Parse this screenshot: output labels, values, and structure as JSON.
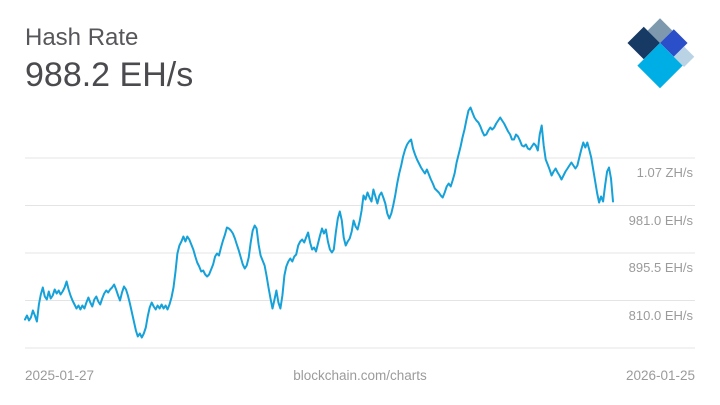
{
  "header": {
    "title": "Hash Rate",
    "current_value": "988.2 EH/s"
  },
  "logo": {
    "name": "blockchain-com-logo",
    "colors": {
      "gray": "#7e99ad",
      "navy": "#173a64",
      "royal": "#2b4fc8",
      "cyan": "#00aee6",
      "light": "#b9d3e5"
    }
  },
  "footer": {
    "start_date": "2025-01-27",
    "watermark": "blockchain.com/charts",
    "end_date": "2026-01-25"
  },
  "chart_data": {
    "type": "line",
    "title": "Hash Rate",
    "unit": "EH/s",
    "current_value_eh": 988.2,
    "x_range": [
      "2025-01-27",
      "2026-01-25"
    ],
    "legend": "none",
    "grid": "horizontal",
    "line_color": "#16a1d9",
    "grid_color": "#e4e4e4",
    "label_color": "#9b9b9b",
    "y_gridlines": [
      {
        "label": "1.07 ZH/s",
        "value_eh": 1066.5
      },
      {
        "label": "981.0 EH/s",
        "value_eh": 981.0
      },
      {
        "label": "895.5 EH/s",
        "value_eh": 895.5
      },
      {
        "label": "810.0 EH/s",
        "value_eh": 810.0
      },
      {
        "label": "",
        "value_eh": 724.5
      }
    ],
    "values_eh": [
      775.8,
      783.0,
      774.0,
      779.4,
      792.0,
      783.0,
      772.2,
      802.8,
      820.8,
      833.4,
      817.2,
      811.8,
      826.2,
      813.6,
      819.0,
      829.8,
      822.6,
      828.0,
      820.8,
      826.2,
      833.4,
      844.2,
      829.8,
      819.0,
      810.0,
      802.8,
      795.6,
      801.0,
      793.8,
      801.0,
      795.6,
      806.4,
      815.4,
      806.4,
      799.2,
      811.8,
      817.2,
      808.2,
      802.8,
      813.6,
      822.6,
      828.0,
      824.4,
      829.8,
      833.4,
      838.8,
      829.8,
      819.0,
      810.0,
      824.4,
      835.2,
      829.8,
      819.0,
      804.6,
      788.4,
      772.2,
      756.0,
      745.2,
      750.6,
      743.4,
      750.6,
      761.4,
      781.2,
      797.4,
      806.4,
      799.2,
      793.8,
      801.0,
      795.6,
      802.8,
      795.6,
      801.0,
      793.8,
      802.8,
      815.4,
      833.4,
      862.2,
      894.6,
      909.0,
      916.2,
      925.2,
      916.2,
      925.2,
      919.8,
      910.8,
      901.8,
      889.2,
      878.4,
      871.2,
      862.2,
      864.0,
      856.8,
      853.2,
      856.8,
      865.8,
      874.8,
      889.2,
      894.6,
      891.0,
      905.4,
      918.0,
      928.8,
      941.4,
      939.6,
      936.0,
      930.6,
      921.6,
      910.8,
      900.0,
      887.4,
      874.8,
      867.6,
      873.0,
      887.4,
      914.4,
      936.0,
      945.0,
      939.6,
      910.8,
      891.0,
      882.0,
      873.0,
      855.0,
      833.4,
      813.6,
      795.6,
      811.8,
      828.0,
      806.4,
      795.6,
      819.0,
      855.0,
      871.2,
      880.2,
      885.6,
      880.2,
      889.2,
      892.8,
      909.0,
      916.2,
      919.8,
      914.4,
      923.4,
      932.4,
      914.4,
      901.8,
      905.4,
      898.2,
      912.6,
      927.0,
      939.6,
      930.6,
      937.8,
      916.2,
      901.8,
      896.4,
      901.8,
      932.4,
      957.6,
      970.2,
      954.0,
      923.4,
      909.0,
      916.2,
      921.6,
      934.2,
      954.0,
      943.2,
      937.8,
      952.2,
      972.0,
      999.0,
      991.8,
      1004.4,
      995.4,
      988.2,
      1009.8,
      997.2,
      984.6,
      999.0,
      1004.4,
      995.4,
      984.6,
      966.6,
      957.6,
      966.6,
      981.0,
      999.0,
      1020.6,
      1038.6,
      1053.0,
      1069.2,
      1081.8,
      1090.8,
      1096.2,
      1099.8,
      1083.6,
      1072.8,
      1063.8,
      1056.6,
      1049.4,
      1044.0,
      1038.6,
      1045.8,
      1036.8,
      1027.8,
      1020.6,
      1011.6,
      1008.0,
      1004.4,
      999.0,
      995.4,
      1004.4,
      1015.2,
      1020.6,
      1015.2,
      1026.0,
      1038.6,
      1058.4,
      1072.8,
      1087.2,
      1103.4,
      1117.8,
      1135.8,
      1152.0,
      1157.4,
      1148.4,
      1139.4,
      1134.0,
      1130.4,
      1123.2,
      1114.2,
      1107.0,
      1108.8,
      1116.0,
      1121.4,
      1117.8,
      1121.4,
      1128.6,
      1134.0,
      1139.4,
      1134.0,
      1128.6,
      1121.4,
      1114.2,
      1108.8,
      1099.8,
      1099.8,
      1108.8,
      1105.2,
      1098.0,
      1089.0,
      1087.2,
      1090.8,
      1083.6,
      1081.8,
      1087.2,
      1092.6,
      1089.0,
      1080.0,
      1108.8,
      1125.0,
      1089.0,
      1063.8,
      1054.8,
      1045.8,
      1035.0,
      1042.2,
      1047.6,
      1040.4,
      1035.0,
      1027.8,
      1035.0,
      1042.2,
      1047.6,
      1053.0,
      1058.4,
      1053.0,
      1047.6,
      1053.0,
      1067.4,
      1081.8,
      1094.4,
      1085.4,
      1094.4,
      1081.8,
      1067.4,
      1045.8,
      1024.2,
      1002.6,
      986.4,
      997.2,
      988.2,
      1017.0,
      1042.2,
      1049.4,
      1029.6,
      988.2
    ]
  }
}
